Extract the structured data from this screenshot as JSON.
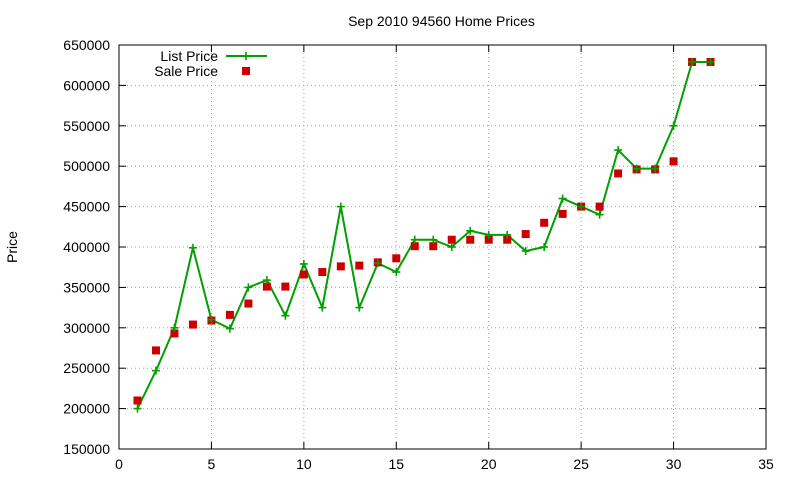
{
  "chart_data": {
    "type": "line",
    "title": "Sep 2010 94560 Home Prices",
    "xlabel": "",
    "ylabel": "Price",
    "xlim": [
      0,
      35
    ],
    "ylim": [
      150000,
      650000
    ],
    "x_ticks": [
      0,
      5,
      10,
      15,
      20,
      25,
      30,
      35
    ],
    "y_ticks": [
      150000,
      200000,
      250000,
      300000,
      350000,
      400000,
      450000,
      500000,
      550000,
      600000,
      650000
    ],
    "grid": true,
    "legend_position": "top-left",
    "series": [
      {
        "name": "List Price",
        "style": "line-with-plus-markers",
        "color": "#00a000",
        "x": [
          1,
          2,
          3,
          4,
          5,
          6,
          7,
          8,
          9,
          10,
          11,
          12,
          13,
          14,
          15,
          16,
          17,
          18,
          19,
          20,
          21,
          22,
          23,
          24,
          25,
          26,
          27,
          28,
          29,
          30,
          31,
          32
        ],
        "y": [
          200000,
          247000,
          300000,
          399000,
          310000,
          299000,
          350000,
          359000,
          315000,
          379000,
          325000,
          450000,
          325000,
          380000,
          369000,
          409000,
          409000,
          400000,
          420000,
          415000,
          415000,
          395000,
          400000,
          460000,
          450000,
          440000,
          520000,
          497000,
          497000,
          550000,
          629000,
          629000
        ]
      },
      {
        "name": "Sale Price",
        "style": "square-markers",
        "color": "#cc0000",
        "x": [
          1,
          2,
          3,
          4,
          5,
          6,
          7,
          8,
          9,
          10,
          11,
          12,
          13,
          14,
          15,
          16,
          17,
          18,
          19,
          20,
          21,
          22,
          23,
          24,
          25,
          26,
          27,
          28,
          29,
          30,
          31,
          32
        ],
        "y": [
          210000,
          272000,
          293000,
          304000,
          309000,
          316000,
          330000,
          351000,
          351000,
          366000,
          369000,
          376000,
          377000,
          381000,
          386000,
          401000,
          401000,
          409000,
          409000,
          409000,
          409000,
          416000,
          430000,
          441000,
          450000,
          450000,
          491000,
          496000,
          496000,
          506000,
          629000,
          629000
        ]
      }
    ]
  }
}
